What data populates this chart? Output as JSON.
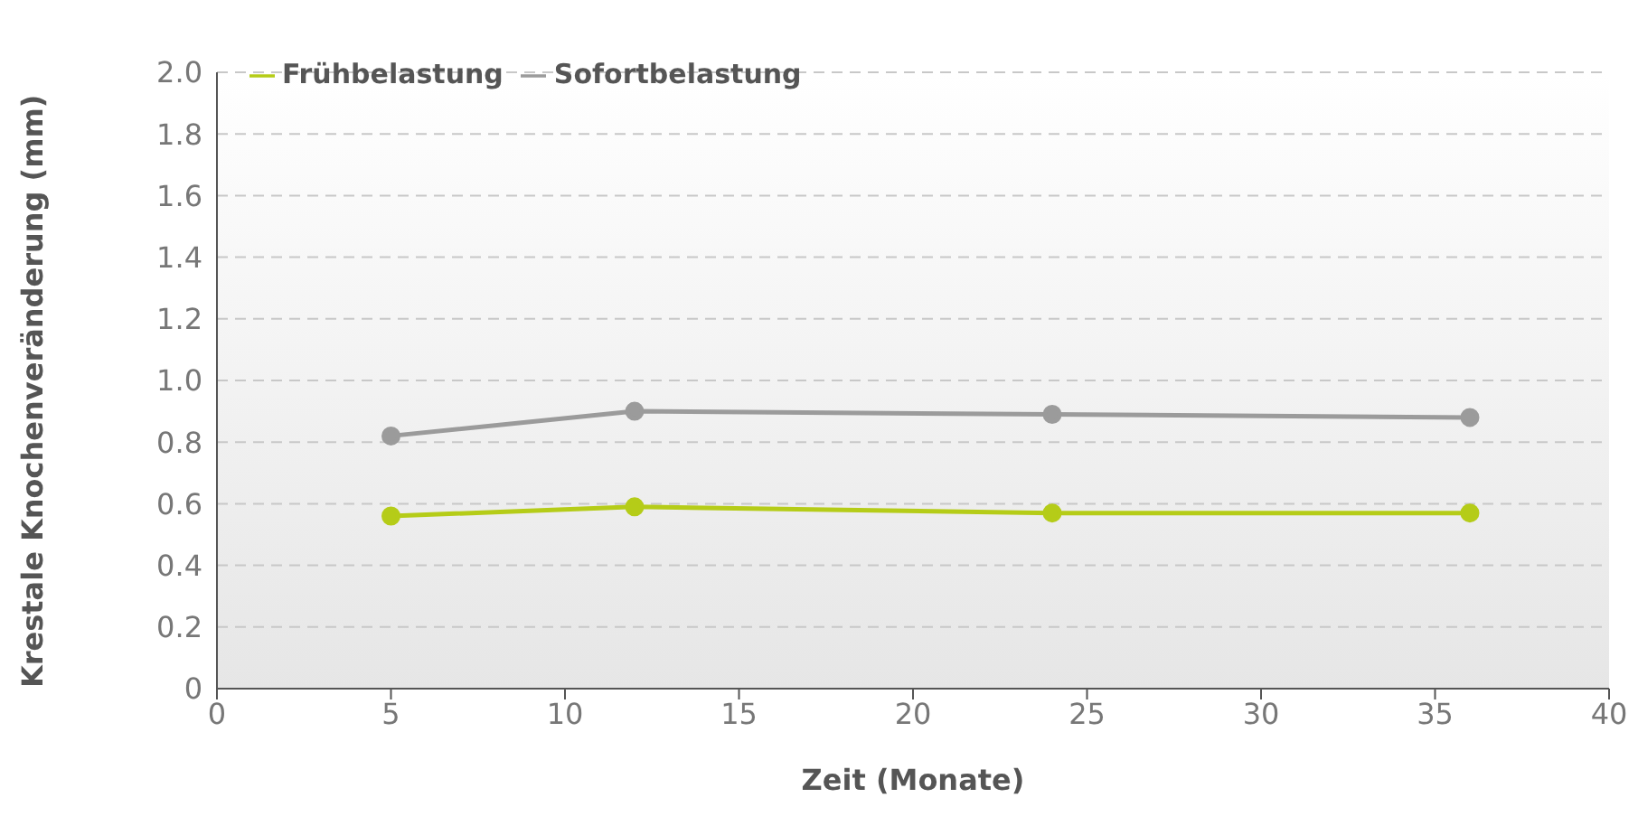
{
  "chart_data": {
    "type": "line",
    "xlabel": "Zeit (Monate)",
    "ylabel": "Krestale Knochenveränderung (mm)",
    "x": [
      5,
      12,
      24,
      36
    ],
    "series": [
      {
        "name": "Frühbelastung",
        "color": "#b5cc18",
        "values": [
          0.56,
          0.59,
          0.57,
          0.57
        ]
      },
      {
        "name": "Sofortbelastung",
        "color": "#9b9b9b",
        "values": [
          0.82,
          0.9,
          0.89,
          0.88
        ]
      }
    ],
    "xlim": [
      0,
      40
    ],
    "xticks": [
      0,
      5,
      10,
      15,
      20,
      25,
      30,
      35,
      40
    ],
    "ylim": [
      0,
      2
    ],
    "yticks": [
      0,
      {
        "value": 0.2,
        "label": "0.2"
      },
      {
        "value": 0.4,
        "label": "0.4"
      },
      {
        "value": 0.6,
        "label": "0.6"
      },
      {
        "value": 0.8,
        "label": "0.8"
      },
      {
        "value": 1,
        "label": "1.0"
      },
      {
        "value": 1.2,
        "label": "1.2"
      },
      {
        "value": 1.4,
        "label": "1.4"
      },
      {
        "value": 1.6,
        "label": "1.6"
      },
      {
        "value": 1.8,
        "label": "1.8"
      },
      {
        "value": 2,
        "label": "2.0"
      }
    ],
    "grid": "y",
    "legend": "top left",
    "marker": "circle",
    "line_style": "solid"
  }
}
